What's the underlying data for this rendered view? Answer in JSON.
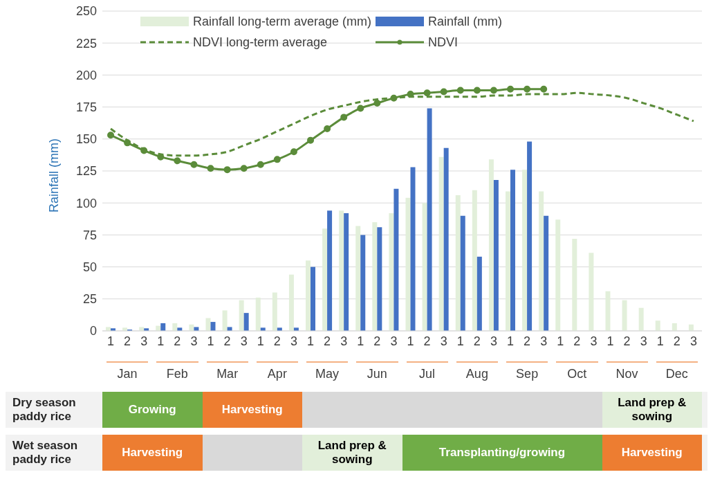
{
  "chart_data": {
    "type": "bar",
    "ylabel": "Rainfall (mm)",
    "categories": [
      "1",
      "2",
      "3",
      "1",
      "2",
      "3",
      "1",
      "2",
      "3",
      "1",
      "2",
      "3",
      "1",
      "2",
      "3",
      "1",
      "2",
      "3",
      "1",
      "2",
      "3",
      "1",
      "2",
      "3",
      "1",
      "2",
      "3",
      "1",
      "2",
      "3",
      "1",
      "2",
      "3",
      "1",
      "2",
      "3"
    ],
    "series": [
      {
        "name": "Rainfall long-term average (mm)",
        "color": "#e2efda",
        "values": [
          3,
          2.5,
          3,
          4,
          6,
          5,
          10,
          16,
          24,
          26,
          30,
          44,
          55,
          80,
          94,
          82,
          85,
          92,
          104,
          100,
          136,
          106,
          110,
          134,
          109,
          126,
          109,
          87,
          72,
          61,
          31,
          24,
          18,
          8,
          6,
          5
        ]
      },
      {
        "name": "Rainfall (mm)",
        "color": "#4472c4",
        "values": [
          2,
          1,
          2,
          6,
          2.5,
          3,
          7,
          3,
          14,
          2.5,
          2.5,
          2.5,
          50,
          94,
          92,
          75,
          81,
          111,
          128,
          174,
          143,
          90,
          58,
          118,
          126,
          148,
          90,
          null,
          null,
          null,
          null,
          null,
          null,
          null,
          null,
          null
        ]
      },
      {
        "name": "NDVI long-term average",
        "type": "line",
        "color": "#5b8c3a",
        "line_style": "dashed",
        "marker": "none",
        "values": [
          158,
          149,
          142,
          138,
          137,
          137,
          138,
          140,
          145,
          150,
          156,
          162,
          168,
          173,
          176,
          179,
          181,
          182,
          183,
          183,
          183,
          183,
          183,
          184,
          184,
          185,
          185,
          185,
          186,
          185,
          184,
          182,
          178,
          174,
          169,
          164
        ]
      },
      {
        "name": "NDVI",
        "type": "line",
        "color": "#5b8c3a",
        "line_style": "solid",
        "marker": "circle",
        "values": [
          153,
          147,
          141,
          136,
          133,
          130,
          127,
          126,
          127,
          130,
          134,
          140,
          149,
          158,
          167,
          174,
          178,
          182,
          185,
          186,
          187,
          188,
          188,
          188,
          189,
          189,
          189,
          null,
          null,
          null,
          null,
          null,
          null,
          null,
          null,
          null
        ]
      }
    ],
    "ylim": [
      0,
      250
    ],
    "yticks": [
      0,
      25,
      50,
      75,
      100,
      125,
      150,
      175,
      200,
      225,
      250
    ],
    "grid": "y",
    "legend": "top",
    "annotations": [
      "Jan",
      "Feb",
      "Mar",
      "Apr",
      "May",
      "Jun",
      "Jul",
      "Aug",
      "Sep",
      "Oct",
      "Nov",
      "Dec",
      "Dry season paddy rice",
      "Growing",
      "Harvesting",
      "Land prep & sowing",
      "Wet season paddy rice",
      "Harvesting",
      "Land prep & sowing",
      "Transplanting/growing",
      "Harvesting"
    ]
  }
}
